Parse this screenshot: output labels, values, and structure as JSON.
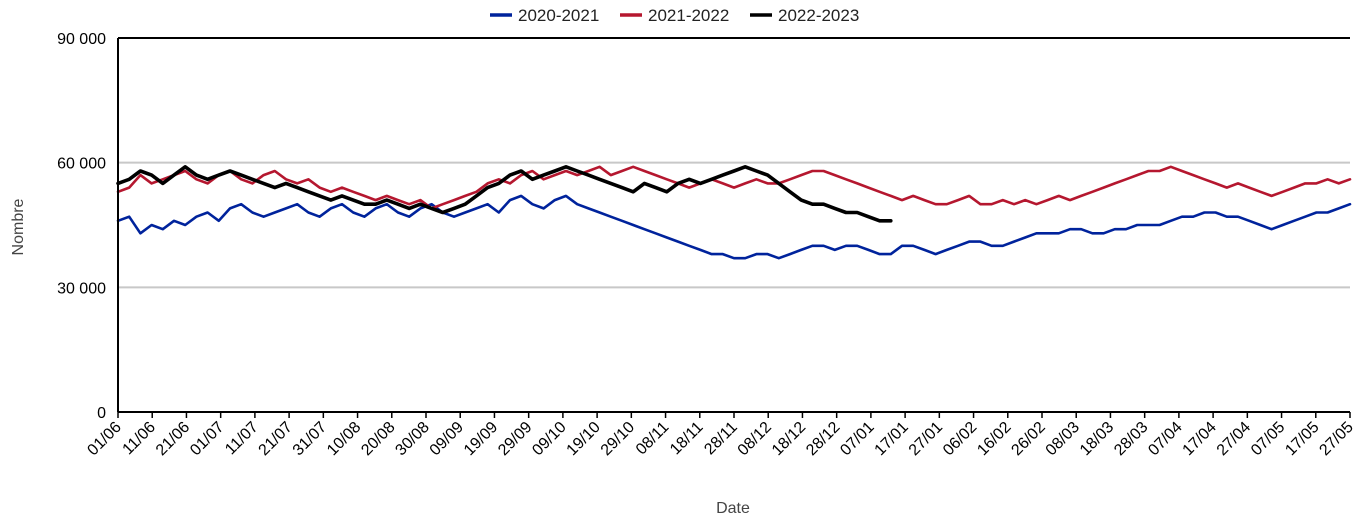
{
  "chart_data": {
    "type": "line",
    "title": "",
    "xlabel": "Date",
    "ylabel": "Nombre",
    "ylim": [
      0,
      90000
    ],
    "yticks": [
      0,
      30000,
      60000,
      90000
    ],
    "ytick_labels": [
      "0",
      "30 000",
      "60 000",
      "90 000"
    ],
    "grid": "horizontal",
    "legend_position": "top-center",
    "x_range_days": [
      0,
      360
    ],
    "x_tick_labels": [
      "01/06",
      "11/06",
      "21/06",
      "01/07",
      "11/07",
      "21/07",
      "31/07",
      "10/08",
      "20/08",
      "30/08",
      "09/09",
      "19/09",
      "29/09",
      "09/10",
      "19/10",
      "29/10",
      "08/11",
      "18/11",
      "28/11",
      "08/12",
      "18/12",
      "28/12",
      "07/01",
      "17/01",
      "27/01",
      "06/02",
      "16/02",
      "26/02",
      "08/03",
      "18/03",
      "28/03",
      "07/04",
      "17/04",
      "27/04",
      "07/05",
      "17/05",
      "27/05"
    ],
    "series": [
      {
        "name": "2020-2021",
        "color": "#00239c",
        "values": [
          46000,
          47000,
          43000,
          45000,
          44000,
          46000,
          45000,
          47000,
          48000,
          46000,
          49000,
          50000,
          48000,
          47000,
          48000,
          49000,
          50000,
          48000,
          47000,
          49000,
          50000,
          48000,
          47000,
          49000,
          50000,
          48000,
          47000,
          49000,
          50000,
          48000,
          47000,
          48000,
          49000,
          50000,
          48000,
          51000,
          52000,
          50000,
          49000,
          51000,
          52000,
          50000,
          49000,
          48000,
          47000,
          46000,
          45000,
          44000,
          43000,
          42000,
          41000,
          40000,
          39000,
          38000,
          38000,
          37000,
          37000,
          38000,
          38000,
          37000,
          38000,
          39000,
          40000,
          40000,
          39000,
          40000,
          40000,
          39000,
          38000,
          38000,
          40000,
          40000,
          39000,
          38000,
          39000,
          40000,
          41000,
          41000,
          40000,
          40000,
          41000,
          42000,
          43000,
          43000,
          43000,
          44000,
          44000,
          43000,
          43000,
          44000,
          44000,
          45000,
          45000,
          45000,
          46000,
          47000,
          47000,
          48000,
          48000,
          47000,
          47000,
          46000,
          45000,
          44000,
          45000,
          46000,
          47000,
          48000,
          48000,
          49000,
          50000
        ]
      },
      {
        "name": "2021-2022",
        "color": "#b5172f",
        "values": [
          53000,
          54000,
          57000,
          55000,
          56000,
          57000,
          58000,
          56000,
          55000,
          57000,
          58000,
          56000,
          55000,
          57000,
          58000,
          56000,
          55000,
          56000,
          54000,
          53000,
          54000,
          53000,
          52000,
          51000,
          52000,
          51000,
          50000,
          51000,
          49000,
          50000,
          51000,
          52000,
          53000,
          55000,
          56000,
          55000,
          57000,
          58000,
          56000,
          57000,
          58000,
          57000,
          58000,
          59000,
          57000,
          58000,
          59000,
          58000,
          57000,
          56000,
          55000,
          54000,
          55000,
          56000,
          55000,
          54000,
          55000,
          56000,
          55000,
          55000,
          56000,
          57000,
          58000,
          58000,
          57000,
          56000,
          55000,
          54000,
          53000,
          52000,
          51000,
          52000,
          51000,
          50000,
          50000,
          51000,
          52000,
          50000,
          50000,
          51000,
          50000,
          51000,
          50000,
          51000,
          52000,
          51000,
          52000,
          53000,
          54000,
          55000,
          56000,
          57000,
          58000,
          58000,
          59000,
          58000,
          57000,
          56000,
          55000,
          54000,
          55000,
          54000,
          53000,
          52000,
          53000,
          54000,
          55000,
          55000,
          56000,
          55000,
          56000
        ]
      },
      {
        "name": "2022-2023",
        "color": "#000000",
        "values": [
          55000,
          56000,
          58000,
          57000,
          55000,
          57000,
          59000,
          57000,
          56000,
          57000,
          58000,
          57000,
          56000,
          55000,
          54000,
          55000,
          54000,
          53000,
          52000,
          51000,
          52000,
          51000,
          50000,
          50000,
          51000,
          50000,
          49000,
          50000,
          49000,
          48000,
          49000,
          50000,
          52000,
          54000,
          55000,
          57000,
          58000,
          56000,
          57000,
          58000,
          59000,
          58000,
          57000,
          56000,
          55000,
          54000,
          53000,
          55000,
          54000,
          53000,
          55000,
          56000,
          55000,
          56000,
          57000,
          58000,
          59000,
          58000,
          57000,
          55000,
          53000,
          51000,
          50000,
          50000,
          49000,
          48000,
          48000,
          47000,
          46000,
          46000
        ]
      }
    ]
  }
}
